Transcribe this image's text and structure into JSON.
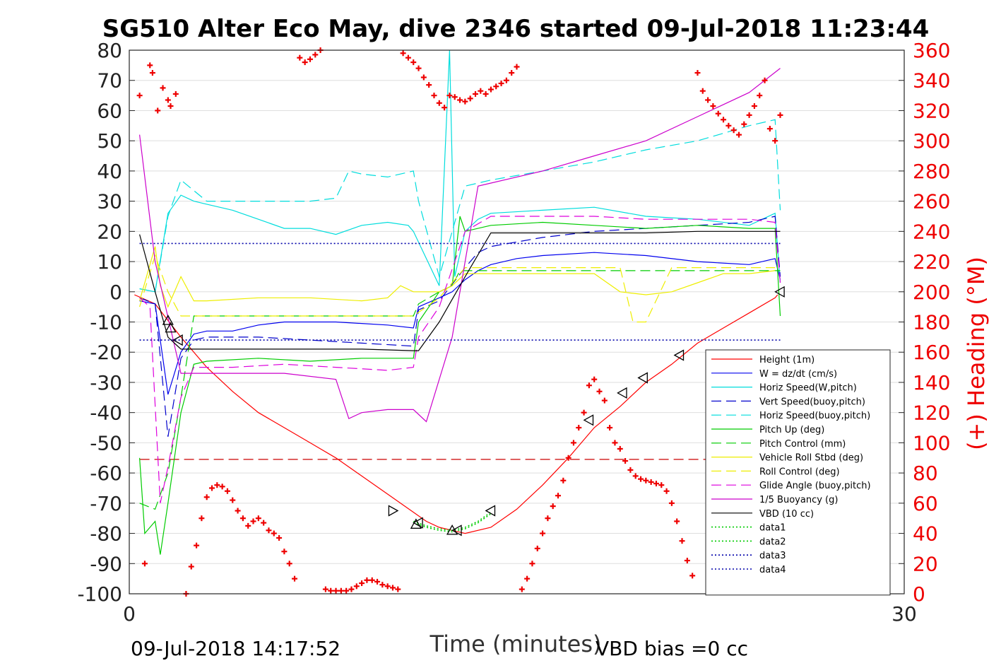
{
  "chart_data": {
    "type": "line",
    "title": "SG510 Alter Eco May, dive 2346 started 09-Jul-2018 11:23:44",
    "xlabel": "Time (minutes)",
    "ylabel_right": "(+) Heading (°M)",
    "footer_left": "09-Jul-2018 14:17:52",
    "footer_right": "VBD bias =0 cc",
    "xlim": [
      0,
      30
    ],
    "ylim": [
      -100,
      80
    ],
    "y2lim": [
      0,
      360
    ],
    "x_ticks": [
      "0",
      "30"
    ],
    "y_ticks": [
      "80",
      "70",
      "60",
      "50",
      "40",
      "30",
      "20",
      "10",
      "0",
      "-10",
      "-20",
      "-30",
      "-40",
      "-50",
      "-60",
      "-70",
      "-80",
      "-90",
      "-100"
    ],
    "y2_ticks": [
      "360",
      "340",
      "320",
      "300",
      "280",
      "260",
      "240",
      "220",
      "200",
      "180",
      "160",
      "140",
      "120",
      "100",
      "80",
      "60",
      "40",
      "20",
      "0"
    ],
    "grid": true,
    "legend_position": "bottom-right inside",
    "series": [
      {
        "name": "Height (1m)",
        "color": "#ff0000",
        "dash": "solid",
        "x": [
          0.2,
          1,
          2,
          3,
          4,
          5,
          6,
          7,
          8,
          9,
          10,
          11,
          11.5,
          12,
          12.5,
          13,
          14,
          15,
          16,
          17,
          18,
          19,
          20,
          21,
          22,
          23,
          24,
          25,
          25.1
        ],
        "y": [
          -1,
          -4,
          -15,
          -25,
          -33,
          -40,
          -45,
          -50,
          -55,
          -61,
          -67,
          -73,
          -76,
          -78,
          -79,
          -80,
          -78,
          -72,
          -64,
          -55,
          -45,
          -38,
          -30,
          -24,
          -17,
          -12,
          -7,
          -2,
          -1
        ]
      },
      {
        "name": "W = dz/dt (cm/s)",
        "color": "#0000ee",
        "dash": "solid",
        "x": [
          0.4,
          1,
          1.5,
          2,
          2.5,
          3,
          4,
          5,
          6,
          8,
          10,
          11,
          11.2,
          12,
          12.5,
          13,
          13.5,
          14,
          15,
          16,
          18,
          20,
          22,
          24,
          25,
          25.2
        ],
        "y": [
          -3,
          -4,
          -34,
          -20,
          -14,
          -13,
          -13,
          -11,
          -10,
          -10,
          -11,
          -12,
          -5,
          -2,
          0,
          4,
          7,
          9,
          11,
          12,
          13,
          12,
          10,
          9,
          11,
          4
        ]
      },
      {
        "name": "Horiz Speed(W,pitch)",
        "color": "#00dddd",
        "dash": "solid",
        "x": [
          0.4,
          1,
          1.5,
          2,
          2.5,
          3,
          4,
          5,
          6,
          7,
          8,
          9,
          10,
          10.8,
          11,
          12,
          12.4,
          12.6,
          13,
          13.5,
          14,
          16,
          18,
          20,
          22,
          24,
          25,
          25.2
        ],
        "y": [
          1,
          0,
          26,
          32,
          30,
          29,
          27,
          24,
          21,
          21,
          19,
          22,
          23,
          22,
          20,
          2,
          80,
          5,
          20,
          24,
          26,
          27,
          28,
          25,
          24,
          22,
          26,
          3
        ]
      },
      {
        "name": "Vert Speed(buoy,pitch)",
        "color": "#0000cc",
        "dash": "long-dash",
        "x": [
          0.4,
          1,
          1.5,
          2,
          2.5,
          3,
          5,
          7,
          9,
          11,
          11.2,
          12,
          13,
          13.5,
          14,
          16,
          18,
          20,
          22,
          24,
          25,
          25.2
        ],
        "y": [
          -2,
          -4,
          -48,
          -22,
          -16,
          -15,
          -15,
          -16,
          -17,
          -18,
          -6,
          -3,
          8,
          13,
          15,
          18,
          20,
          21,
          22,
          23,
          25,
          5
        ]
      },
      {
        "name": "Horiz Speed(buoy,pitch)",
        "color": "#00dddd",
        "dash": "long-dash",
        "x": [
          0.4,
          1,
          1.5,
          2,
          3,
          5,
          7,
          8,
          8.5,
          9,
          10,
          11,
          11.2,
          12,
          13,
          14,
          16,
          18,
          20,
          22,
          24,
          25,
          25.2
        ],
        "y": [
          1,
          0,
          25,
          37,
          30,
          30,
          30,
          31,
          40,
          39,
          38,
          40,
          30,
          5,
          35,
          37,
          40,
          43,
          47,
          50,
          55,
          57,
          27
        ]
      },
      {
        "name": "Pitch Up (deg)",
        "color": "#00cc00",
        "dash": "solid",
        "x": [
          0.4,
          0.6,
          1,
          1.2,
          1.5,
          2,
          2.5,
          3,
          5,
          7,
          9,
          11,
          11.2,
          12,
          12.5,
          12.8,
          13,
          14,
          16,
          18,
          20,
          22,
          24,
          25,
          25.2
        ],
        "y": [
          -55,
          -80,
          -76,
          -87,
          -70,
          -40,
          -24,
          -23,
          -22,
          -23,
          -22,
          -22,
          -10,
          0,
          2,
          25,
          20,
          22,
          23,
          22,
          21,
          22,
          21,
          21,
          -8
        ]
      },
      {
        "name": "Pitch Control (mm)",
        "color": "#00cc00",
        "dash": "long-dash",
        "x": [
          0.4,
          1,
          1.5,
          2,
          2.5,
          4,
          6,
          8,
          10,
          11,
          11.2,
          12,
          12.5,
          12.8,
          13,
          15,
          20,
          25,
          25.2
        ],
        "y": [
          -70,
          -72,
          -60,
          -35,
          -8,
          -8,
          -8,
          -8,
          -8,
          -8,
          -4,
          0,
          2,
          7,
          7,
          7,
          7,
          7,
          7
        ]
      },
      {
        "name": "Vehicle Roll Stbd (deg)",
        "color": "#eeee00",
        "dash": "solid",
        "x": [
          0.4,
          1,
          1.2,
          1.5,
          2,
          2.5,
          3,
          5,
          7,
          9,
          10,
          10.5,
          11,
          12,
          12.5,
          13,
          14,
          16,
          18,
          19,
          20,
          21,
          22,
          23,
          24,
          25
        ],
        "y": [
          -3,
          15,
          2,
          -5,
          5,
          -3,
          -3,
          -2,
          -2,
          -3,
          -2,
          2,
          0,
          0,
          2,
          6,
          6,
          6,
          6,
          0,
          -1,
          0,
          3,
          6,
          6,
          7
        ]
      },
      {
        "name": "Roll Control (deg)",
        "color": "#eeee00",
        "dash": "long-dash",
        "x": [
          0.4,
          1,
          1.5,
          2,
          3,
          5,
          8,
          11,
          12,
          13,
          15,
          18,
          19,
          19.5,
          20,
          21,
          25
        ],
        "y": [
          -5,
          12,
          0,
          -8,
          -8,
          -8,
          -8,
          -8,
          -2,
          8,
          8,
          8,
          8,
          -10,
          -10,
          8,
          8
        ]
      },
      {
        "name": "Glide Angle (buoy,pitch)",
        "color": "#dd00dd",
        "dash": "long-dash",
        "x": [
          0.4,
          0.8,
          1.2,
          1.5,
          2,
          2.5,
          4,
          6,
          8,
          10,
          11,
          11.2,
          12,
          13,
          14,
          16,
          18,
          20,
          22,
          24,
          25,
          25.2
        ],
        "y": [
          -2,
          -5,
          -70,
          -58,
          -35,
          -25,
          -25,
          -24,
          -25,
          -26,
          -25,
          -15,
          -5,
          20,
          25,
          25,
          25,
          24,
          24,
          24,
          23,
          3
        ]
      },
      {
        "name": "1/5 Buoyancy (g)",
        "color": "#cc00cc",
        "dash": "solid",
        "x": [
          0.4,
          1,
          2,
          4,
          6,
          8,
          8.5,
          9,
          10,
          11,
          11.5,
          12.5,
          13,
          13.5,
          14,
          16,
          18,
          20,
          22,
          24,
          25.2
        ],
        "y": [
          52,
          10,
          -27,
          -27,
          -27,
          -29,
          -42,
          -40,
          -39,
          -39,
          -43,
          -15,
          10,
          35,
          36,
          40,
          45,
          50,
          58,
          66,
          74
        ]
      },
      {
        "name": "VBD (10 cc)",
        "color": "#000000",
        "dash": "solid",
        "x": [
          0.4,
          1,
          1.5,
          2,
          3,
          5,
          7,
          9,
          11,
          11.2,
          12,
          13,
          14,
          16,
          18,
          20,
          22,
          24,
          25.2
        ],
        "y": [
          19,
          0,
          -15,
          -19,
          -19,
          -19,
          -19,
          -19,
          -19.5,
          -19.5,
          -10,
          5,
          19.5,
          19.5,
          19.5,
          19.5,
          20,
          20,
          20
        ]
      },
      {
        "name": "data1",
        "color": "#00cc00",
        "dash": "dotted",
        "x": [
          11,
          11.5,
          12,
          12.5,
          13,
          13.5,
          14
        ],
        "y": [
          -76,
          -77.5,
          -78.5,
          -79,
          -78,
          -76,
          -73
        ]
      },
      {
        "name": "data2",
        "color": "#00cc00",
        "dash": "dotted",
        "x": [
          11,
          11.5,
          12,
          12.5,
          13,
          13.5,
          14
        ],
        "y": [
          -76.5,
          -78,
          -79,
          -79.5,
          -78.5,
          -76.5,
          -73.5
        ]
      },
      {
        "name": "data3",
        "color": "#0000aa",
        "dash": "dotted",
        "x": [
          0.4,
          25.2
        ],
        "y": [
          -16,
          -16
        ]
      },
      {
        "name": "data4",
        "color": "#0000aa",
        "dash": "dotted",
        "x": [
          0.4,
          25.2
        ],
        "y": [
          16,
          16
        ]
      }
    ],
    "reference_lines": [
      {
        "color": "#cc0000",
        "dash": "long-dash",
        "y": -55.5,
        "x": [
          0.4,
          25.2
        ]
      }
    ],
    "heading_markers": {
      "name": "(+) Heading (°M)",
      "color": "#ee0000",
      "marker": "+",
      "x": [
        0.4,
        0.6,
        0.8,
        0.9,
        1.1,
        1.3,
        1.5,
        1.6,
        1.8,
        2.2,
        2.4,
        2.6,
        2.8,
        3.0,
        3.2,
        3.4,
        3.6,
        3.8,
        4.0,
        4.2,
        4.4,
        4.6,
        4.8,
        5.0,
        5.2,
        5.4,
        5.6,
        5.8,
        6.0,
        6.2,
        6.4,
        6.6,
        6.8,
        7.0,
        7.2,
        7.4,
        7.6,
        7.8,
        8.0,
        8.2,
        8.4,
        8.6,
        8.8,
        9.0,
        9.2,
        9.4,
        9.6,
        9.8,
        10.0,
        10.2,
        10.4,
        10.6,
        10.8,
        11.0,
        11.2,
        11.4,
        11.6,
        11.8,
        12.0,
        12.2,
        12.4,
        12.6,
        12.8,
        13.0,
        13.2,
        13.4,
        13.6,
        13.8,
        14.0,
        14.2,
        14.4,
        14.6,
        14.8,
        15.0,
        15.2,
        15.4,
        15.6,
        15.8,
        16.0,
        16.2,
        16.4,
        16.6,
        16.8,
        17.0,
        17.2,
        17.4,
        17.6,
        17.8,
        18.0,
        18.2,
        18.4,
        18.6,
        18.8,
        19.0,
        19.2,
        19.4,
        19.6,
        19.8,
        20.0,
        20.2,
        20.4,
        20.6,
        20.8,
        21.0,
        21.2,
        21.4,
        21.6,
        21.8,
        22.0,
        22.2,
        22.4,
        22.6,
        22.8,
        23.0,
        23.2,
        23.4,
        23.6,
        23.8,
        24.0,
        24.2,
        24.4,
        24.6,
        24.8,
        25.0,
        25.2
      ],
      "y": [
        330,
        20,
        350,
        345,
        320,
        335,
        327,
        323,
        331,
        0,
        18,
        32,
        50,
        64,
        70,
        72,
        71,
        68,
        62,
        55,
        50,
        45,
        48,
        50,
        47,
        42,
        40,
        37,
        28,
        20,
        10,
        355,
        352,
        354,
        357,
        360,
        3,
        2,
        2,
        2,
        2,
        3,
        5,
        7,
        9,
        9,
        8,
        6,
        5,
        4,
        3,
        358,
        355,
        352,
        348,
        342,
        337,
        330,
        325,
        322,
        330,
        329,
        327,
        326,
        328,
        331,
        333,
        331,
        334,
        336,
        338,
        340,
        345,
        349,
        3,
        10,
        20,
        30,
        40,
        50,
        58,
        65,
        75,
        90,
        100,
        110,
        120,
        138,
        142,
        134,
        128,
        110,
        100,
        96,
        88,
        82,
        78,
        76,
        75,
        74,
        73,
        72,
        68,
        60,
        48,
        35,
        22,
        12,
        345,
        333,
        327,
        323,
        318,
        314,
        310,
        307,
        304,
        311,
        317,
        323,
        330,
        340,
        308,
        300,
        317
      ]
    },
    "triangle_markers": [
      {
        "dir": "up",
        "x": 1.5,
        "y": -9.5
      },
      {
        "dir": "up",
        "x": 1.6,
        "y": -12
      },
      {
        "dir": "left",
        "x": 1.9,
        "y": -16
      },
      {
        "dir": "right",
        "x": 10.2,
        "y": -72.5
      },
      {
        "dir": "left",
        "x": 11.2,
        "y": -76.5
      },
      {
        "dir": "up",
        "x": 11.1,
        "y": -77
      },
      {
        "dir": "up",
        "x": 12.5,
        "y": -79
      },
      {
        "dir": "left",
        "x": 12.7,
        "y": -79
      },
      {
        "dir": "left",
        "x": 14.0,
        "y": -72.5
      },
      {
        "dir": "left",
        "x": 17.8,
        "y": -42.5
      },
      {
        "dir": "left",
        "x": 19.1,
        "y": -33.5
      },
      {
        "dir": "left",
        "x": 19.9,
        "y": -28.5
      },
      {
        "dir": "left",
        "x": 21.3,
        "y": -21
      },
      {
        "dir": "left",
        "x": 25.2,
        "y": 0
      }
    ]
  }
}
